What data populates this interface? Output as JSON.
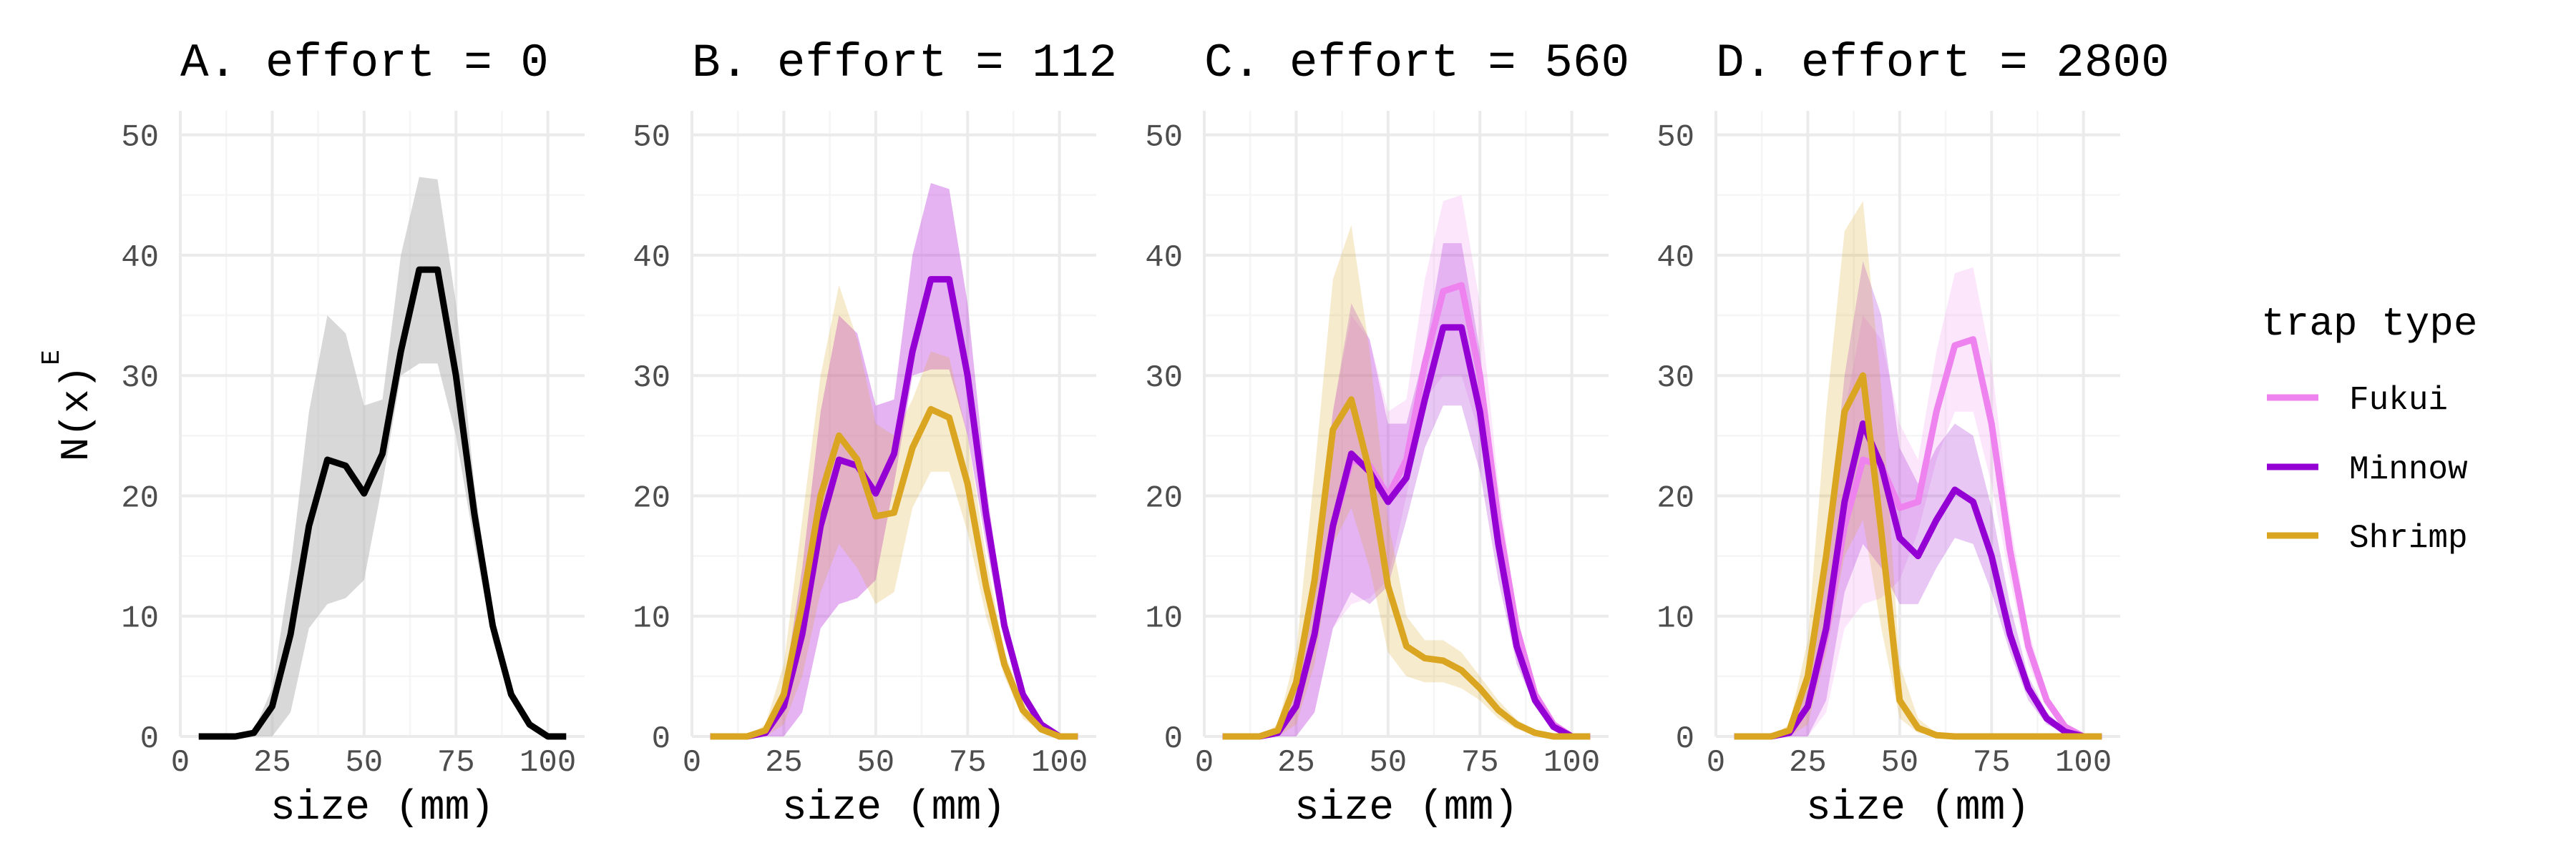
{
  "colors": {
    "effort0": "#000000",
    "Fukui": "#EE82EE",
    "Minnow": "#9400D3",
    "Shrimp": "#DAA520",
    "band_gray": "#BEBEBE",
    "grid_major": "#EBEBEB",
    "grid_minor": "#F5F5F5",
    "tick_text": "#4D4D4D"
  },
  "y_axis_label": "N(x)",
  "y_axis_label_sup": "E",
  "legend": {
    "title": "trap type",
    "items": [
      {
        "key": "Fukui",
        "label": "Fukui"
      },
      {
        "key": "Minnow",
        "label": "Minnow"
      },
      {
        "key": "Shrimp",
        "label": "Shrimp"
      }
    ]
  },
  "chart_data": [
    {
      "type": "line",
      "title": "A. effort = 0",
      "xlabel": "size (mm)",
      "ylabel": "N(x)E",
      "xlim": [
        0,
        110
      ],
      "ylim": [
        0,
        52
      ],
      "x_ticks": [
        0,
        25,
        50,
        75,
        100
      ],
      "y_ticks": [
        0,
        10,
        20,
        30,
        40,
        50
      ],
      "x": [
        5,
        10,
        15,
        20,
        25,
        30,
        35,
        40,
        45,
        50,
        55,
        60,
        65,
        70,
        75,
        80,
        85,
        90,
        95,
        100,
        105
      ],
      "series": [
        {
          "key": "effort0",
          "values": [
            0,
            0,
            0,
            0.3,
            2.5,
            8.5,
            17.5,
            23,
            22.5,
            20.2,
            23.5,
            32,
            38.8,
            38.8,
            30,
            18.5,
            9.2,
            3.5,
            1,
            0,
            0
          ],
          "lower": [
            0,
            0,
            0,
            0,
            0,
            2,
            9,
            11,
            11.5,
            13,
            21,
            30,
            31,
            31,
            25,
            16,
            8,
            3,
            0.8,
            0,
            0
          ],
          "upper": [
            0,
            0,
            0,
            0.5,
            4,
            14,
            27,
            35,
            33.5,
            27.5,
            28,
            40,
            46.5,
            46.3,
            36,
            21,
            10,
            4,
            1.2,
            0,
            0
          ]
        }
      ]
    },
    {
      "type": "line",
      "title": "B. effort = 112",
      "xlabel": "size (mm)",
      "xlim": [
        0,
        110
      ],
      "ylim": [
        0,
        52
      ],
      "x_ticks": [
        0,
        25,
        50,
        75,
        100
      ],
      "y_ticks": [
        0,
        10,
        20,
        30,
        40,
        50
      ],
      "x": [
        5,
        10,
        15,
        20,
        25,
        30,
        35,
        40,
        45,
        50,
        55,
        60,
        65,
        70,
        75,
        80,
        85,
        90,
        95,
        100,
        105
      ],
      "series": [
        {
          "key": "Fukui",
          "values": [
            0,
            0,
            0,
            0.3,
            2.5,
            8.5,
            17.5,
            23,
            22.5,
            20.2,
            23.5,
            32,
            38,
            38,
            30,
            18.5,
            9.2,
            3.5,
            1,
            0,
            0
          ],
          "lower": [
            0,
            0,
            0,
            0,
            0,
            2,
            9,
            11,
            11.5,
            13,
            21,
            30,
            30.5,
            30.5,
            25,
            16,
            8,
            3,
            0.8,
            0,
            0
          ],
          "upper": [
            0,
            0,
            0,
            0.5,
            4,
            14,
            27,
            35,
            33.5,
            27.5,
            28,
            40,
            46,
            45.5,
            36,
            21,
            10,
            4,
            1.2,
            0,
            0
          ]
        },
        {
          "key": "Minnow",
          "values": [
            0,
            0,
            0,
            0.3,
            2.5,
            8.5,
            17.5,
            23,
            22.5,
            20.2,
            23.5,
            32,
            38,
            38,
            30,
            18.5,
            9.2,
            3.5,
            1,
            0,
            0
          ],
          "lower": [
            0,
            0,
            0,
            0,
            0,
            2,
            9,
            11,
            11.5,
            13,
            21,
            30,
            30.5,
            30.5,
            25,
            16,
            8,
            3,
            0.8,
            0,
            0
          ],
          "upper": [
            0,
            0,
            0,
            0.5,
            4,
            14,
            27,
            35,
            33.5,
            27.5,
            28,
            40,
            46,
            45.5,
            36,
            21,
            10,
            4,
            1.2,
            0,
            0
          ]
        },
        {
          "key": "Shrimp",
          "values": [
            0,
            0,
            0,
            0.5,
            3.5,
            11,
            20,
            25,
            23,
            18.3,
            18.6,
            24,
            27.2,
            26.5,
            21,
            12.5,
            6,
            2.2,
            0.6,
            0,
            0
          ],
          "lower": [
            0,
            0,
            0,
            0,
            1,
            5,
            12,
            16,
            14,
            11,
            12,
            19,
            22,
            22,
            17,
            10,
            5,
            1.5,
            0.4,
            0,
            0
          ],
          "upper": [
            0,
            0,
            0,
            1,
            6,
            18,
            30,
            37.5,
            33,
            26,
            25,
            28,
            32,
            31.5,
            25,
            15,
            7,
            3,
            0.8,
            0,
            0
          ]
        }
      ]
    },
    {
      "type": "line",
      "title": "C. effort = 560",
      "xlabel": "size (mm)",
      "xlim": [
        0,
        110
      ],
      "ylim": [
        0,
        52
      ],
      "x_ticks": [
        0,
        25,
        50,
        75,
        100
      ],
      "y_ticks": [
        0,
        10,
        20,
        30,
        40,
        50
      ],
      "x": [
        5,
        10,
        15,
        20,
        25,
        30,
        35,
        40,
        45,
        50,
        55,
        60,
        65,
        70,
        75,
        80,
        85,
        90,
        95,
        100,
        105
      ],
      "series": [
        {
          "key": "Fukui",
          "values": [
            0,
            0,
            0,
            0.3,
            2.5,
            8.5,
            17.5,
            23,
            22.5,
            20,
            23,
            31,
            37,
            37.5,
            30,
            18,
            9,
            3.5,
            1,
            0,
            0
          ],
          "lower": [
            0,
            0,
            0,
            0,
            0,
            2,
            9,
            11,
            11.5,
            13,
            20,
            28,
            30,
            30,
            25,
            15,
            8,
            3,
            0.8,
            0,
            0
          ],
          "upper": [
            0,
            0,
            0,
            0.5,
            4,
            14,
            27,
            35,
            33,
            27,
            28,
            38,
            44.5,
            45,
            36,
            21,
            10,
            4,
            1.2,
            0,
            0
          ]
        },
        {
          "key": "Minnow",
          "values": [
            0,
            0,
            0,
            0.3,
            2.5,
            8.5,
            17.5,
            23.5,
            22,
            19.5,
            21.5,
            28,
            34,
            34,
            27,
            16,
            7.5,
            3,
            0.8,
            0,
            0
          ],
          "lower": [
            0,
            0,
            0,
            0,
            0,
            2,
            9,
            12,
            11,
            12.5,
            18,
            24,
            27.5,
            27.5,
            22,
            13,
            6,
            2.5,
            0.6,
            0,
            0
          ],
          "upper": [
            0,
            0,
            0,
            0.5,
            4,
            14,
            27,
            36,
            33,
            26,
            26,
            32,
            41,
            41,
            32,
            19,
            9,
            3.5,
            1,
            0,
            0
          ]
        },
        {
          "key": "Shrimp",
          "values": [
            0,
            0,
            0,
            0.5,
            4.5,
            13,
            25.5,
            28,
            22,
            12.5,
            7.5,
            6.5,
            6.3,
            5.5,
            4,
            2.2,
            1,
            0.3,
            0,
            0,
            0
          ],
          "lower": [
            0,
            0,
            0,
            0,
            1,
            6,
            16,
            19,
            14,
            7,
            5,
            4.5,
            4.5,
            4,
            3,
            1.5,
            0.6,
            0.2,
            0,
            0,
            0
          ],
          "upper": [
            0,
            0,
            0,
            1,
            7,
            22,
            38,
            42.5,
            32,
            18,
            10,
            8,
            8,
            7,
            5,
            3,
            1.4,
            0.5,
            0,
            0,
            0
          ]
        }
      ]
    },
    {
      "type": "line",
      "title": "D. effort = 2800",
      "xlabel": "size (mm)",
      "xlim": [
        0,
        110
      ],
      "ylim": [
        0,
        52
      ],
      "x_ticks": [
        0,
        25,
        50,
        75,
        100
      ],
      "y_ticks": [
        0,
        10,
        20,
        30,
        40,
        50
      ],
      "x": [
        5,
        10,
        15,
        20,
        25,
        30,
        35,
        40,
        45,
        50,
        55,
        60,
        65,
        70,
        75,
        80,
        85,
        90,
        95,
        100,
        105
      ],
      "series": [
        {
          "key": "Fukui",
          "values": [
            0,
            0,
            0,
            0.3,
            2.5,
            8.5,
            17.5,
            23,
            22.5,
            19,
            19.5,
            27,
            32.5,
            33,
            26,
            15.5,
            7.5,
            3,
            0.8,
            0,
            0
          ],
          "lower": [
            0,
            0,
            0,
            0,
            0,
            2,
            9,
            11,
            11.5,
            13,
            17,
            23,
            27,
            27,
            21,
            13,
            6,
            2.5,
            0.6,
            0,
            0
          ],
          "upper": [
            0,
            0,
            0,
            0.5,
            4,
            14,
            27,
            35,
            33,
            26,
            23,
            32,
            38.5,
            39,
            31,
            18,
            9,
            3.5,
            1,
            0,
            0
          ]
        },
        {
          "key": "Minnow",
          "values": [
            0,
            0,
            0,
            0.3,
            2.5,
            9,
            19.5,
            26,
            22.5,
            16.5,
            15,
            18,
            20.5,
            19.5,
            15,
            8.5,
            4,
            1.5,
            0.4,
            0,
            0
          ],
          "lower": [
            0,
            0,
            0,
            0,
            0,
            3,
            12,
            16,
            14,
            11,
            11,
            14,
            16.5,
            16,
            12,
            7,
            3,
            1,
            0.3,
            0,
            0
          ],
          "upper": [
            0,
            0,
            0,
            0.5,
            4,
            15,
            30,
            39.5,
            35,
            24,
            21,
            24,
            26,
            25,
            19,
            11,
            5,
            2,
            0.6,
            0,
            0
          ]
        },
        {
          "key": "Shrimp",
          "values": [
            0,
            0,
            0,
            0.5,
            5,
            15,
            27,
            30,
            17,
            3,
            0.7,
            0.1,
            0,
            0,
            0,
            0,
            0,
            0,
            0,
            0,
            0
          ],
          "lower": [
            0,
            0,
            0,
            0,
            1,
            7,
            15,
            18,
            9,
            1.5,
            0.3,
            0,
            0,
            0,
            0,
            0,
            0,
            0,
            0,
            0,
            0
          ],
          "upper": [
            0,
            0,
            0,
            1,
            8,
            27,
            42,
            44.5,
            29,
            6,
            1.5,
            0.3,
            0,
            0,
            0,
            0,
            0,
            0,
            0,
            0,
            0
          ]
        }
      ]
    }
  ]
}
